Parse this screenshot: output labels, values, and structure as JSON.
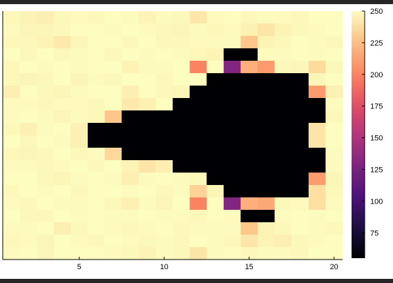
{
  "colors": {
    "frame": "#262626",
    "axis": "#000000",
    "colormap": "magma"
  },
  "chart_data": {
    "type": "heatmap",
    "title": "",
    "xlabel": "",
    "ylabel": "",
    "x_range": [
      1,
      20
    ],
    "y_range": [
      1,
      15
    ],
    "x_ticks": [
      5,
      10,
      15,
      20
    ],
    "x_tick_labels": [
      "5",
      "10",
      "15",
      "20"
    ],
    "y_ticks_shown": false,
    "grid": false,
    "colorbar": {
      "position": "right",
      "range": [
        55,
        250
      ],
      "ticks": [
        75,
        100,
        125,
        150,
        175,
        200,
        225,
        250
      ],
      "tick_labels": [
        "75",
        "100",
        "125",
        "150",
        "175",
        "200",
        "225",
        "250"
      ]
    },
    "z_rows_top_to_bottom": [
      [
        248,
        246,
        244,
        248,
        249,
        248,
        250,
        249,
        246,
        249,
        248,
        241,
        249,
        250,
        248,
        249,
        249,
        248,
        250,
        250
      ],
      [
        249,
        247,
        247,
        248,
        250,
        250,
        249,
        250,
        249,
        248,
        247,
        249,
        248,
        249,
        245,
        240,
        246,
        248,
        249,
        250
      ],
      [
        248,
        248,
        246,
        242,
        247,
        250,
        250,
        248,
        250,
        248,
        248,
        249,
        249,
        249,
        228,
        246,
        248,
        250,
        249,
        248
      ],
      [
        250,
        248,
        250,
        248,
        249,
        250,
        248,
        250,
        249,
        250,
        249,
        248,
        246,
        55,
        55,
        249,
        249,
        250,
        249,
        250
      ],
      [
        248,
        250,
        249,
        250,
        249,
        250,
        250,
        246,
        249,
        249,
        250,
        200,
        250,
        130,
        218,
        210,
        248,
        247,
        236,
        248
      ],
      [
        248,
        247,
        248,
        250,
        247,
        249,
        248,
        250,
        250,
        248,
        250,
        250,
        55,
        55,
        55,
        55,
        55,
        55,
        247,
        250
      ],
      [
        244,
        250,
        248,
        247,
        249,
        250,
        250,
        244,
        250,
        248,
        247,
        55,
        55,
        55,
        55,
        55,
        55,
        55,
        210,
        245
      ],
      [
        249,
        249,
        248,
        249,
        249,
        248,
        250,
        242,
        245,
        250,
        55,
        55,
        55,
        55,
        55,
        55,
        55,
        55,
        55,
        249
      ],
      [
        249,
        250,
        249,
        247,
        249,
        248,
        228,
        55,
        55,
        55,
        55,
        55,
        55,
        55,
        55,
        55,
        55,
        55,
        55,
        248
      ],
      [
        248,
        245,
        249,
        250,
        245,
        55,
        55,
        55,
        55,
        55,
        55,
        55,
        55,
        55,
        55,
        55,
        55,
        55,
        240,
        250
      ],
      [
        250,
        248,
        250,
        249,
        245,
        55,
        55,
        55,
        55,
        55,
        55,
        55,
        55,
        55,
        55,
        55,
        55,
        55,
        240,
        250
      ],
      [
        248,
        247,
        248,
        250,
        248,
        249,
        235,
        55,
        55,
        55,
        55,
        55,
        55,
        55,
        55,
        55,
        55,
        55,
        55,
        249
      ],
      [
        249,
        249,
        248,
        249,
        250,
        248,
        250,
        246,
        240,
        244,
        55,
        55,
        55,
        55,
        55,
        55,
        55,
        55,
        55,
        249
      ],
      [
        250,
        250,
        248,
        247,
        249,
        250,
        249,
        244,
        249,
        250,
        249,
        248,
        55,
        55,
        55,
        55,
        55,
        55,
        210,
        247
      ],
      [
        248,
        250,
        249,
        250,
        248,
        250,
        250,
        249,
        250,
        248,
        249,
        233,
        247,
        55,
        55,
        55,
        55,
        55,
        238,
        248
      ],
      [
        249,
        248,
        250,
        249,
        249,
        250,
        248,
        245,
        249,
        247,
        250,
        200,
        250,
        130,
        218,
        215,
        248,
        249,
        238,
        249
      ],
      [
        250,
        248,
        248,
        250,
        249,
        250,
        249,
        249,
        250,
        249,
        249,
        248,
        250,
        249,
        55,
        55,
        249,
        250,
        249,
        250
      ],
      [
        249,
        249,
        250,
        244,
        248,
        250,
        249,
        248,
        249,
        250,
        248,
        249,
        249,
        249,
        229,
        246,
        248,
        250,
        249,
        248
      ],
      [
        248,
        249,
        247,
        250,
        249,
        248,
        250,
        249,
        248,
        249,
        248,
        250,
        249,
        248,
        241,
        246,
        244,
        248,
        249,
        250
      ],
      [
        249,
        250,
        247,
        250,
        250,
        250,
        249,
        248,
        246,
        249,
        248,
        240,
        249,
        250,
        248,
        249,
        249,
        248,
        250,
        250
      ]
    ]
  }
}
